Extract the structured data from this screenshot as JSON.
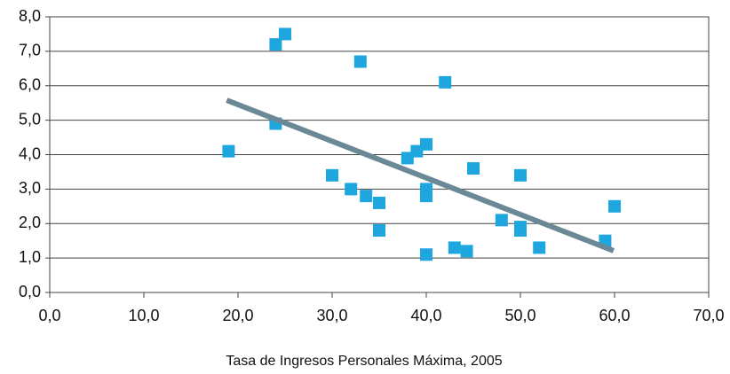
{
  "chart_data": {
    "type": "scatter",
    "x_label": "Tasa de Ingresos Personales Máxima, 2005",
    "series": [
      {
        "color": "#1ea6df",
        "x": [
          19,
          24,
          25,
          24,
          33,
          42,
          30,
          32,
          33.6,
          35,
          35,
          38,
          39,
          40,
          40,
          40,
          40,
          43,
          44.3,
          45,
          48,
          50,
          50,
          50,
          52,
          59,
          60
        ],
        "values": [
          4.1,
          7.2,
          7.5,
          4.9,
          6.7,
          6.1,
          3.4,
          3.0,
          2.8,
          2.6,
          1.8,
          3.9,
          4.1,
          4.3,
          3.0,
          2.8,
          1.1,
          1.3,
          1.2,
          3.6,
          2.1,
          3.4,
          1.9,
          1.8,
          1.3,
          1.5,
          2.5
        ]
      }
    ],
    "trendline": {
      "color": "#6b8896",
      "x": [
        18.8,
        59.9
      ],
      "values": [
        5.58,
        1.21
      ]
    },
    "xlim": [
      0,
      70
    ],
    "xticks": [
      {
        "value": 0,
        "label": "0,0"
      },
      {
        "value": 10,
        "label": "10,0"
      },
      {
        "value": 20,
        "label": "20,0"
      },
      {
        "value": 30,
        "label": "30,0"
      },
      {
        "value": 40,
        "label": "40,0"
      },
      {
        "value": 50,
        "label": "50,0"
      },
      {
        "value": 60,
        "label": "60,0"
      },
      {
        "value": 70,
        "label": "70,0"
      }
    ],
    "ylim": [
      0,
      8
    ],
    "yticks": [
      {
        "value": 0,
        "label": "0,0"
      },
      {
        "value": 1,
        "label": "1,0"
      },
      {
        "value": 2,
        "label": "2,0"
      },
      {
        "value": 3,
        "label": "3,0"
      },
      {
        "value": 4,
        "label": "4,0"
      },
      {
        "value": 5,
        "label": "5,0"
      },
      {
        "value": 6,
        "label": "6,0"
      },
      {
        "value": 7,
        "label": "7,0"
      },
      {
        "value": 8,
        "label": "8,0"
      }
    ],
    "grid": true
  }
}
